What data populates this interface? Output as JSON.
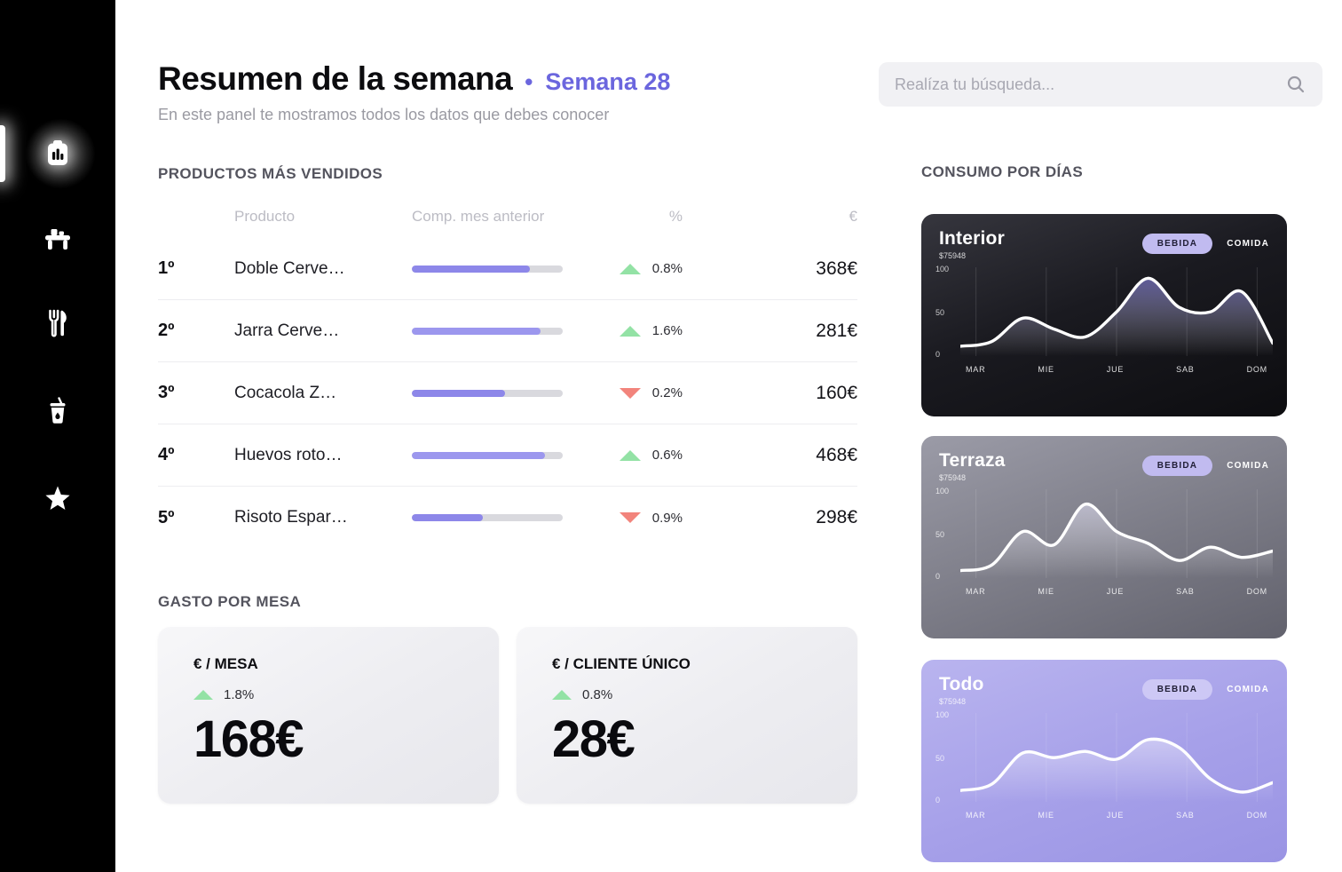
{
  "header": {
    "title": "Resumen de la semana",
    "dot": "•",
    "week": "Semana 28",
    "subtitle": "En este panel te mostramos todos los datos que debes conocer",
    "accent": "#6b66de"
  },
  "search": {
    "placeholder": "Realíza tu búsqueda..."
  },
  "sidebar": {
    "items": [
      {
        "id": "dashboard",
        "icon": "dashboard-chart-icon",
        "active": true
      },
      {
        "id": "tables",
        "icon": "table-icon",
        "active": false
      },
      {
        "id": "food",
        "icon": "cutlery-icon",
        "active": false
      },
      {
        "id": "drinks",
        "icon": "drink-icon",
        "active": false
      },
      {
        "id": "favorites",
        "icon": "star-icon",
        "active": false
      }
    ]
  },
  "products": {
    "section_title": "PRODUCTOS MÁS VENDIDOS",
    "columns": {
      "producto": "Producto",
      "comp": "Comp. mes anterior",
      "pct": "%",
      "eur": "€"
    },
    "bar_color": "#8d87e9",
    "rows": [
      {
        "rank": "1º",
        "name": "Doble Cerve…",
        "bar_pct": 78,
        "trend": "up",
        "pct": "0.8%",
        "amount": "368€"
      },
      {
        "rank": "2º",
        "name": "Jarra Cerve…",
        "bar_pct": 85,
        "trend": "up",
        "pct": "1.6%",
        "amount": "281€"
      },
      {
        "rank": "3º",
        "name": "Cocacola Z…",
        "bar_pct": 62,
        "trend": "down",
        "pct": "0.2%",
        "amount": "160€"
      },
      {
        "rank": "4º",
        "name": "Huevos roto…",
        "bar_pct": 88,
        "trend": "up",
        "pct": "0.6%",
        "amount": "468€"
      },
      {
        "rank": "5º",
        "name": "Risoto Espar…",
        "bar_pct": 47,
        "trend": "down",
        "pct": "0.9%",
        "amount": "298€"
      }
    ]
  },
  "gasto": {
    "section_title": "GASTO POR MESA",
    "cards": [
      {
        "label": "€ / MESA",
        "trend": "up",
        "pct": "1.8%",
        "value": "168€"
      },
      {
        "label": "€ / CLIENTE ÚNICO",
        "trend": "up",
        "pct": "0.8%",
        "value": "28€"
      }
    ]
  },
  "consumo": {
    "section_title": "CONSUMO POR DÍAS",
    "cards": [
      {
        "title": "Interior",
        "subtitle": "$75948",
        "tabs": [
          "BEBIDA",
          "COMIDA"
        ],
        "y_ticks": [
          "100",
          "50",
          "0"
        ],
        "x_ticks": [
          "MAR",
          "MIE",
          "JUE",
          "SAB",
          "DOM"
        ],
        "values": [
          8,
          14,
          44,
          30,
          20,
          52,
          95,
          58,
          52,
          78,
          12
        ],
        "fill_top": "rgba(140,134,234,0.6)"
      },
      {
        "title": "Terraza",
        "subtitle": "$75948",
        "tabs": [
          "BEBIDA",
          "COMIDA"
        ],
        "y_ticks": [
          "100",
          "50",
          "0"
        ],
        "x_ticks": [
          "MAR",
          "MIE",
          "JUE",
          "SAB",
          "DOM"
        ],
        "values": [
          5,
          12,
          55,
          38,
          90,
          55,
          40,
          18,
          35,
          22,
          30
        ],
        "fill_top": "rgba(230,228,250,0.55)"
      },
      {
        "title": "Todo",
        "subtitle": "$75948",
        "tabs": [
          "BEBIDA",
          "COMIDA"
        ],
        "y_ticks": [
          "100",
          "50",
          "0"
        ],
        "x_ticks": [
          "MAR",
          "MIE",
          "JUE",
          "SAB",
          "DOM"
        ],
        "values": [
          10,
          18,
          58,
          52,
          60,
          50,
          75,
          65,
          25,
          8,
          20
        ],
        "fill_top": "rgba(255,255,255,0.4)"
      }
    ]
  }
}
